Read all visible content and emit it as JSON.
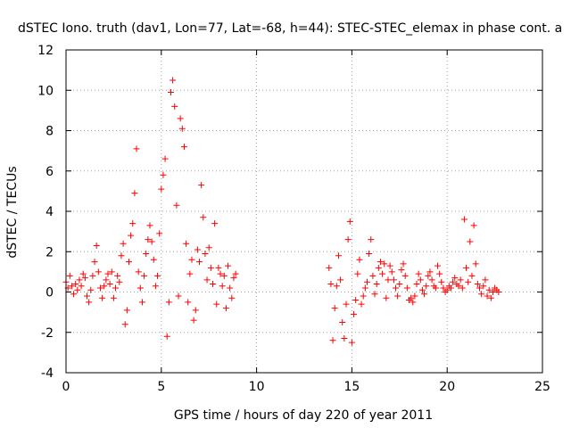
{
  "chart_data": {
    "type": "scatter",
    "title": "dSTEC Iono. truth (dav1, Lon=77, Lat=-68, h=44): STEC-STEC_elemax in phase cont. a",
    "xlabel": "GPS time / hours of day 220 of year 2011",
    "ylabel": "dSTEC  / TECUs",
    "xlim": [
      0,
      25
    ],
    "ylim": [
      -4,
      12
    ],
    "xticks": [
      0,
      5,
      10,
      15,
      20,
      25
    ],
    "yticks": [
      -4,
      -2,
      0,
      2,
      4,
      6,
      8,
      10,
      12
    ],
    "grid": true,
    "marker": "+",
    "color": "#ff0000",
    "series": [
      {
        "x": [
          0.0,
          0.1,
          0.2,
          0.3,
          0.4,
          0.5,
          0.6,
          0.7,
          0.8,
          0.9,
          1.0,
          1.1,
          1.2,
          1.3,
          1.4,
          1.5,
          1.6,
          1.7,
          1.8,
          1.9,
          2.0,
          2.1,
          2.2,
          2.3,
          2.4,
          2.5,
          2.6,
          2.7,
          2.8,
          2.9,
          3.0,
          3.1,
          3.2,
          3.3,
          3.4,
          3.5,
          3.6,
          3.7,
          3.8,
          3.9,
          4.0,
          4.1,
          4.2,
          4.3,
          4.4,
          4.5,
          4.6,
          4.7,
          4.8,
          4.9,
          5.0,
          5.1,
          5.2,
          5.3,
          5.4,
          5.5,
          5.6,
          5.7,
          5.8,
          5.9,
          6.0,
          6.1,
          6.2,
          6.3,
          6.4,
          6.5,
          6.6,
          6.7,
          6.8,
          6.9,
          7.0,
          7.1,
          7.2,
          7.3,
          7.4,
          7.5,
          7.6,
          7.7,
          7.8,
          7.9,
          8.0,
          8.1,
          8.2,
          8.3,
          8.4,
          8.5,
          8.6,
          8.7,
          8.8,
          8.9
        ],
        "y": [
          0.5,
          0.2,
          0.8,
          0.3,
          -0.1,
          0.4,
          0.1,
          0.6,
          0.3,
          0.9,
          0.7,
          -0.2,
          -0.5,
          0.1,
          0.8,
          1.5,
          2.3,
          1.0,
          0.2,
          -0.3,
          0.3,
          0.6,
          0.9,
          0.4,
          1.0,
          -0.3,
          0.2,
          0.8,
          0.5,
          1.8,
          2.4,
          -1.6,
          -0.9,
          1.5,
          2.8,
          3.4,
          4.9,
          7.1,
          1.0,
          0.2,
          -0.5,
          0.8,
          1.9,
          2.6,
          3.3,
          2.5,
          1.6,
          0.3,
          0.8,
          2.9,
          5.1,
          5.8,
          6.6,
          -2.2,
          -0.5,
          9.9,
          10.5,
          9.2,
          4.3,
          -0.2,
          8.6,
          8.1,
          7.2,
          2.4,
          -0.5,
          0.9,
          1.6,
          -1.4,
          -0.9,
          2.1,
          1.5,
          5.3,
          3.7,
          1.9,
          0.6,
          2.2,
          1.2,
          0.4,
          3.4,
          -0.6,
          1.2,
          0.9,
          0.3,
          0.8,
          -0.8,
          1.3,
          0.2,
          -0.3,
          0.7,
          0.9
        ]
      },
      {
        "x": [
          13.8,
          13.9,
          14.0,
          14.1,
          14.2,
          14.3,
          14.4,
          14.5,
          14.6,
          14.7,
          14.8,
          14.9,
          15.0,
          15.1,
          15.2,
          15.3,
          15.4,
          15.5,
          15.6,
          15.7,
          15.8,
          15.9,
          16.0,
          16.1,
          16.2,
          16.3,
          16.4,
          16.5,
          16.6,
          16.7,
          16.8,
          16.9,
          17.0,
          17.1,
          17.2,
          17.3,
          17.4,
          17.5,
          17.6,
          17.7,
          17.8,
          17.9,
          18.0,
          18.1,
          18.2,
          18.3,
          18.4,
          18.5,
          18.6,
          18.7,
          18.8,
          18.9,
          19.0,
          19.1,
          19.2,
          19.3,
          19.4,
          19.5,
          19.6,
          19.7,
          19.8,
          19.9,
          20.0,
          20.1,
          20.2,
          20.3,
          20.4,
          20.5,
          20.6,
          20.7,
          20.8,
          20.9,
          21.0,
          21.1,
          21.2,
          21.3,
          21.4,
          21.5,
          21.6,
          21.7,
          21.8,
          21.9,
          22.0,
          22.1,
          22.2,
          22.3,
          22.4,
          22.5,
          22.6,
          22.7
        ],
        "y": [
          1.2,
          0.4,
          -2.4,
          -0.8,
          0.3,
          1.8,
          0.6,
          -1.5,
          -2.3,
          -0.6,
          2.6,
          3.5,
          -2.5,
          -1.1,
          -0.4,
          0.9,
          1.6,
          -0.6,
          -0.2,
          0.2,
          0.5,
          1.9,
          2.6,
          0.8,
          -0.1,
          0.4,
          1.2,
          1.5,
          0.9,
          1.4,
          -0.3,
          0.6,
          1.3,
          1.0,
          0.6,
          0.2,
          -0.2,
          0.4,
          1.1,
          1.4,
          0.8,
          0.2,
          -0.4,
          -0.3,
          -0.5,
          -0.2,
          0.4,
          0.9,
          0.6,
          0.1,
          -0.1,
          0.3,
          0.8,
          1.0,
          0.6,
          0.3,
          0.2,
          1.3,
          0.9,
          0.5,
          0.2,
          0.0,
          0.1,
          0.3,
          0.2,
          0.5,
          0.7,
          0.4,
          0.3,
          0.6,
          0.2,
          3.6,
          1.2,
          0.5,
          2.5,
          0.8,
          3.3,
          1.4,
          0.4,
          0.2,
          -0.1,
          0.3,
          0.6,
          -0.2,
          0.1,
          -0.3,
          0.0,
          0.2,
          0.1,
          0.0
        ]
      }
    ]
  }
}
